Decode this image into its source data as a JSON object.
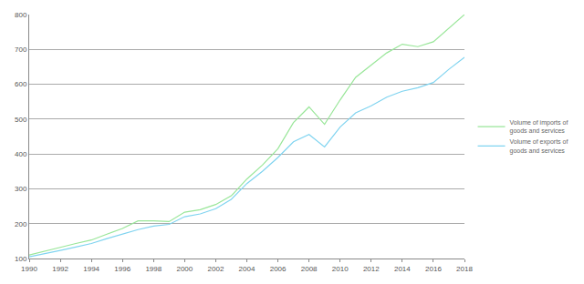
{
  "chart_data": {
    "type": "line",
    "x": [
      1990,
      1991,
      1992,
      1993,
      1994,
      1995,
      1996,
      1997,
      1998,
      1999,
      2000,
      2001,
      2002,
      2003,
      2004,
      2005,
      2006,
      2007,
      2008,
      2009,
      2010,
      2011,
      2012,
      2013,
      2014,
      2015,
      2016,
      2017,
      2018
    ],
    "series": [
      {
        "name": "Volume of imports of goods and services",
        "color": "#99e699",
        "values": [
          110,
          122,
          132,
          143,
          153,
          170,
          186,
          208,
          208,
          206,
          233,
          240,
          255,
          280,
          328,
          368,
          415,
          490,
          535,
          485,
          555,
          620,
          655,
          690,
          715,
          708,
          722,
          762,
          800
        ]
      },
      {
        "name": "Volume of exports of goods and services",
        "color": "#80d4f0",
        "values": [
          105,
          113,
          123,
          133,
          143,
          157,
          170,
          183,
          193,
          198,
          220,
          228,
          243,
          270,
          315,
          350,
          390,
          435,
          456,
          420,
          477,
          518,
          538,
          563,
          580,
          590,
          605,
          643,
          677
        ]
      }
    ],
    "xlim": [
      1990,
      2018
    ],
    "xticks": [
      1990,
      1992,
      1994,
      1996,
      1998,
      2000,
      2002,
      2004,
      2006,
      2008,
      2010,
      2012,
      2014,
      2016,
      2018
    ],
    "ylim": [
      100,
      800
    ],
    "yticks": [
      100,
      200,
      300,
      400,
      500,
      600,
      700,
      800
    ],
    "grid": true,
    "legend": "right"
  }
}
